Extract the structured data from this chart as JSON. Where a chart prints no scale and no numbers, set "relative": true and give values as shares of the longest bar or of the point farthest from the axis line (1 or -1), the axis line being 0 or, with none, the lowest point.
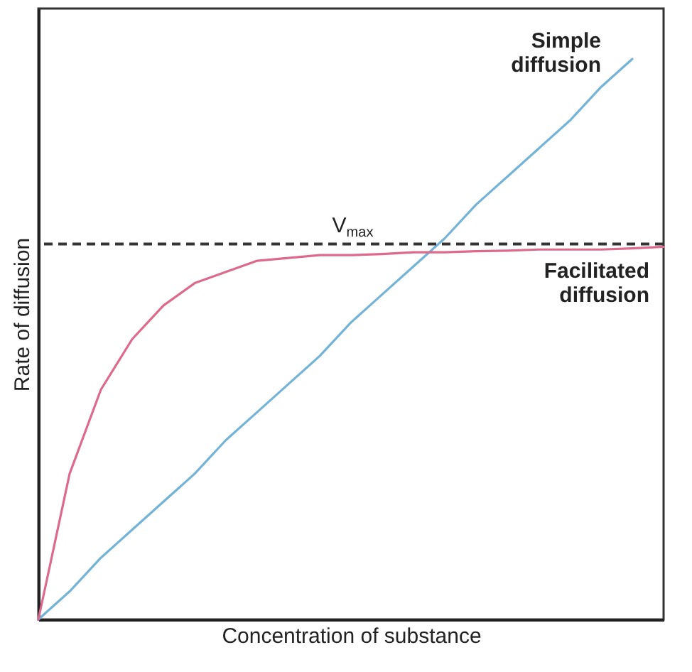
{
  "chart_data": {
    "type": "line",
    "relative": true,
    "xlabel": "Concentration of substance",
    "ylabel": "Rate of diffusion",
    "grid": false,
    "marker": "none",
    "line_style": "solid",
    "categories": [
      null,
      null,
      null,
      null,
      null,
      null,
      null,
      null,
      null,
      null,
      null,
      null,
      null,
      null,
      null,
      null,
      null,
      null,
      null,
      null,
      null
    ],
    "series": [
      {
        "name": "Simple diffusion",
        "color": "#74b3d8",
        "values": [
          0,
          0.05,
          0.11,
          0.16,
          0.21,
          0.26,
          0.32,
          0.37,
          0.42,
          0.47,
          0.53,
          0.58,
          0.63,
          0.68,
          0.74,
          0.79,
          0.84,
          0.89,
          0.95,
          1,
          null
        ]
      },
      {
        "name": "Facilitated diffusion",
        "color": "#dd6a8c",
        "values": [
          0,
          0.26,
          0.41,
          0.5,
          0.56,
          0.6,
          0.62,
          0.64,
          0.645,
          0.65,
          0.65,
          0.652,
          0.655,
          0.655,
          0.657,
          0.658,
          0.66,
          0.66,
          0.66,
          0.662,
          0.665
        ]
      }
    ],
    "ref_lines": [
      {
        "axis": "y",
        "value": 0.67,
        "label": "V$_{max}$",
        "color": "#333333",
        "line_style": "dashed"
      }
    ]
  }
}
